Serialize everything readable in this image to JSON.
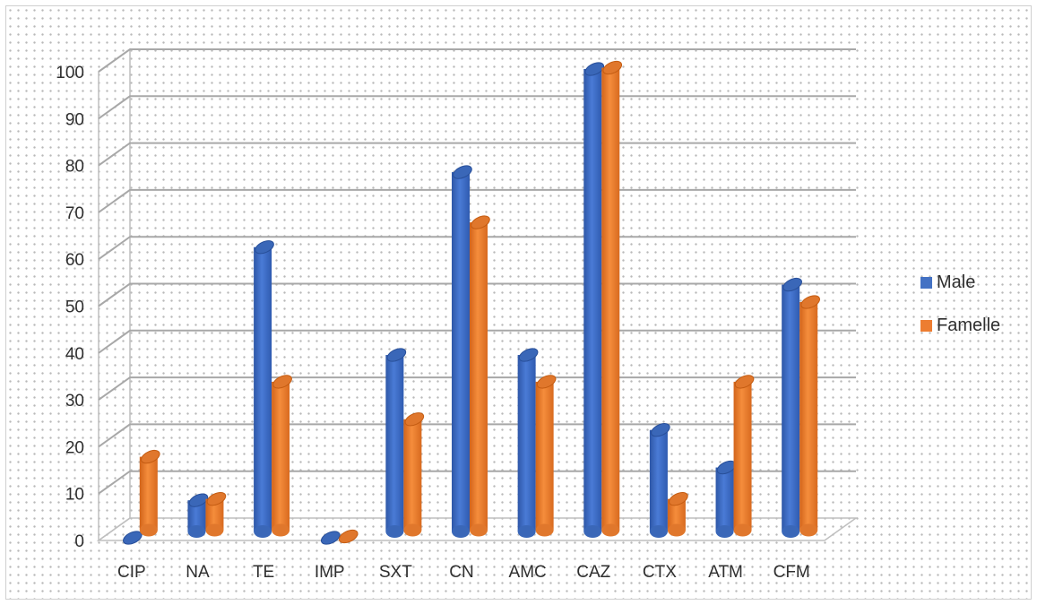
{
  "chart_data": {
    "type": "bar",
    "title": "",
    "xlabel": "",
    "ylabel": "",
    "ylim": [
      0,
      100
    ],
    "yticks": [
      0,
      10,
      20,
      30,
      40,
      50,
      60,
      70,
      80,
      90,
      100
    ],
    "grid": true,
    "legend_position": "right",
    "categories": [
      "CIP",
      "NA",
      "TE",
      "IMP",
      "SXT",
      "CN",
      "AMC",
      "CAZ",
      "CTX",
      "ATM",
      "CFM"
    ],
    "series": [
      {
        "name": "Male",
        "color": "#4472c4",
        "values": [
          0,
          8,
          62,
          0,
          39,
          78,
          39,
          100,
          23,
          15,
          54
        ]
      },
      {
        "name": "Famelle",
        "color": "#ed7d31",
        "values": [
          17,
          8,
          33,
          0,
          25,
          67,
          33,
          100,
          8,
          33,
          50
        ]
      }
    ]
  }
}
